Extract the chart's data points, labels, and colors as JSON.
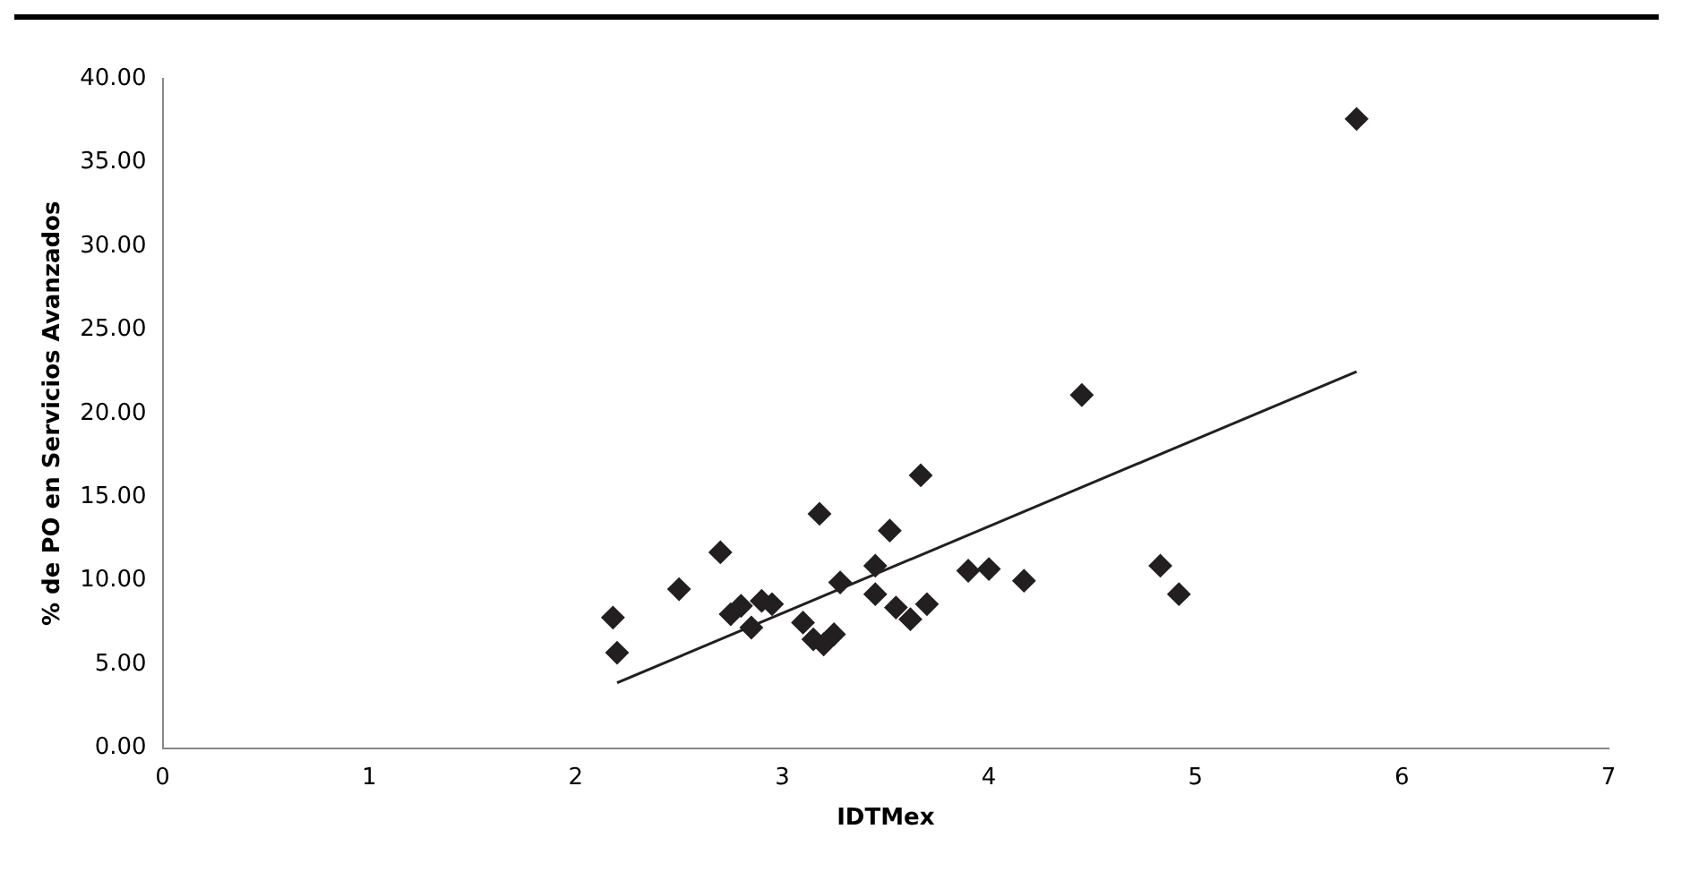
{
  "chart_data": {
    "type": "scatter",
    "xlabel": "IDTMex",
    "ylabel": "% de PO en Servicios Avanzados",
    "xlim": [
      0,
      7
    ],
    "xticks": [
      0,
      1,
      2,
      3,
      4,
      5,
      6,
      7
    ],
    "ylim": [
      0,
      40
    ],
    "yticks": [
      {
        "value": 0,
        "label": "0.00"
      },
      {
        "value": 5,
        "label": "5.00"
      },
      {
        "value": 10,
        "label": "10.00"
      },
      {
        "value": 15,
        "label": "15.00"
      },
      {
        "value": 20,
        "label": "20.00"
      },
      {
        "value": 25,
        "label": "25.00"
      },
      {
        "value": 30,
        "label": "30.00"
      },
      {
        "value": 35,
        "label": "35.00"
      },
      {
        "value": 40,
        "label": "40.00"
      }
    ],
    "grid": false,
    "legend": false,
    "marker": "diamond",
    "series": [
      {
        "color": "#231f20",
        "x": [
          2.18,
          2.2,
          2.5,
          2.7,
          2.75,
          2.8,
          2.85,
          2.9,
          2.95,
          3.18,
          3.1,
          3.15,
          3.2,
          3.25,
          3.28,
          3.45,
          3.45,
          3.52,
          3.55,
          3.62,
          3.67,
          3.7,
          3.9,
          4.0,
          4.17,
          4.45,
          4.83,
          4.92,
          5.78
        ],
        "values": [
          7.8,
          5.7,
          9.5,
          11.7,
          8.0,
          8.5,
          7.2,
          8.8,
          8.6,
          14.0,
          7.5,
          6.5,
          6.2,
          6.8,
          9.9,
          9.2,
          10.9,
          13.0,
          8.4,
          7.7,
          16.3,
          8.6,
          10.6,
          10.7,
          10.0,
          21.1,
          10.9,
          9.2,
          37.6
        ]
      },
      {
        "type": "line",
        "color": "#231f20",
        "marker": "none",
        "x": [
          2.2,
          5.78
        ],
        "values": [
          3.9,
          22.5
        ]
      }
    ]
  }
}
